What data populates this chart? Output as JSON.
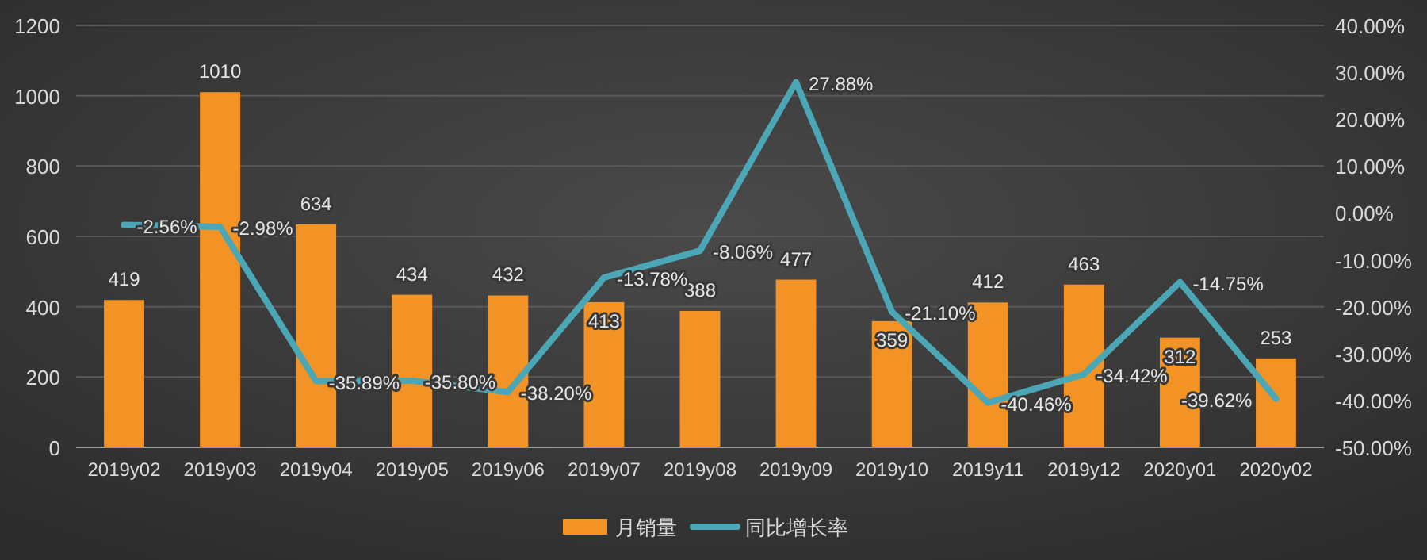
{
  "chart_data": {
    "type": "bar",
    "categories": [
      "2019y02",
      "2019y03",
      "2019y04",
      "2019y05",
      "2019y06",
      "2019y07",
      "2019y08",
      "2019y09",
      "2019y10",
      "2019y11",
      "2019y12",
      "2020y01",
      "2020y02"
    ],
    "series": [
      {
        "name": "月销量",
        "type": "bar",
        "color": "#f39325",
        "values": [
          419,
          1010,
          634,
          434,
          432,
          413,
          388,
          477,
          359,
          412,
          463,
          312,
          253
        ],
        "value_labels": [
          "419",
          "1010",
          "634",
          "434",
          "432",
          "413",
          "388",
          "477",
          "359",
          "412",
          "463",
          "312",
          "253"
        ]
      },
      {
        "name": "同比增长率",
        "type": "line",
        "axis": "y2",
        "color": "#4ba7b5",
        "values": [
          -2.56,
          -2.98,
          -35.89,
          -35.8,
          -38.2,
          -13.78,
          -8.06,
          27.88,
          -21.1,
          -40.46,
          -34.42,
          -14.75,
          -39.62
        ],
        "value_labels": [
          "-2.56%",
          "-2.98%",
          "-35.89%",
          "-35.80%",
          "-38.20%",
          "-13.78%",
          "-8.06%",
          "27.88%",
          "-21.10%",
          "-40.46%",
          "-34.42%",
          "-14.75%",
          "-39.62%"
        ]
      }
    ],
    "ylim": [
      0,
      1200
    ],
    "yticks": [
      0,
      200,
      400,
      600,
      800,
      1000,
      1200
    ],
    "y2lim": [
      -50,
      40
    ],
    "y2ticks": [
      {
        "value": -50,
        "label": "-50.00%"
      },
      {
        "value": -40,
        "label": "-40.00%"
      },
      {
        "value": -30,
        "label": "-30.00%"
      },
      {
        "value": -20,
        "label": "-20.00%"
      },
      {
        "value": -10,
        "label": "-10.00%"
      },
      {
        "value": 0,
        "label": "0.00%"
      },
      {
        "value": 10,
        "label": "10.00%"
      },
      {
        "value": 20,
        "label": "20.00%"
      },
      {
        "value": 30,
        "label": "30.00%"
      },
      {
        "value": 40,
        "label": "40.00%"
      }
    ],
    "grid": "y",
    "legend": "bottom"
  }
}
